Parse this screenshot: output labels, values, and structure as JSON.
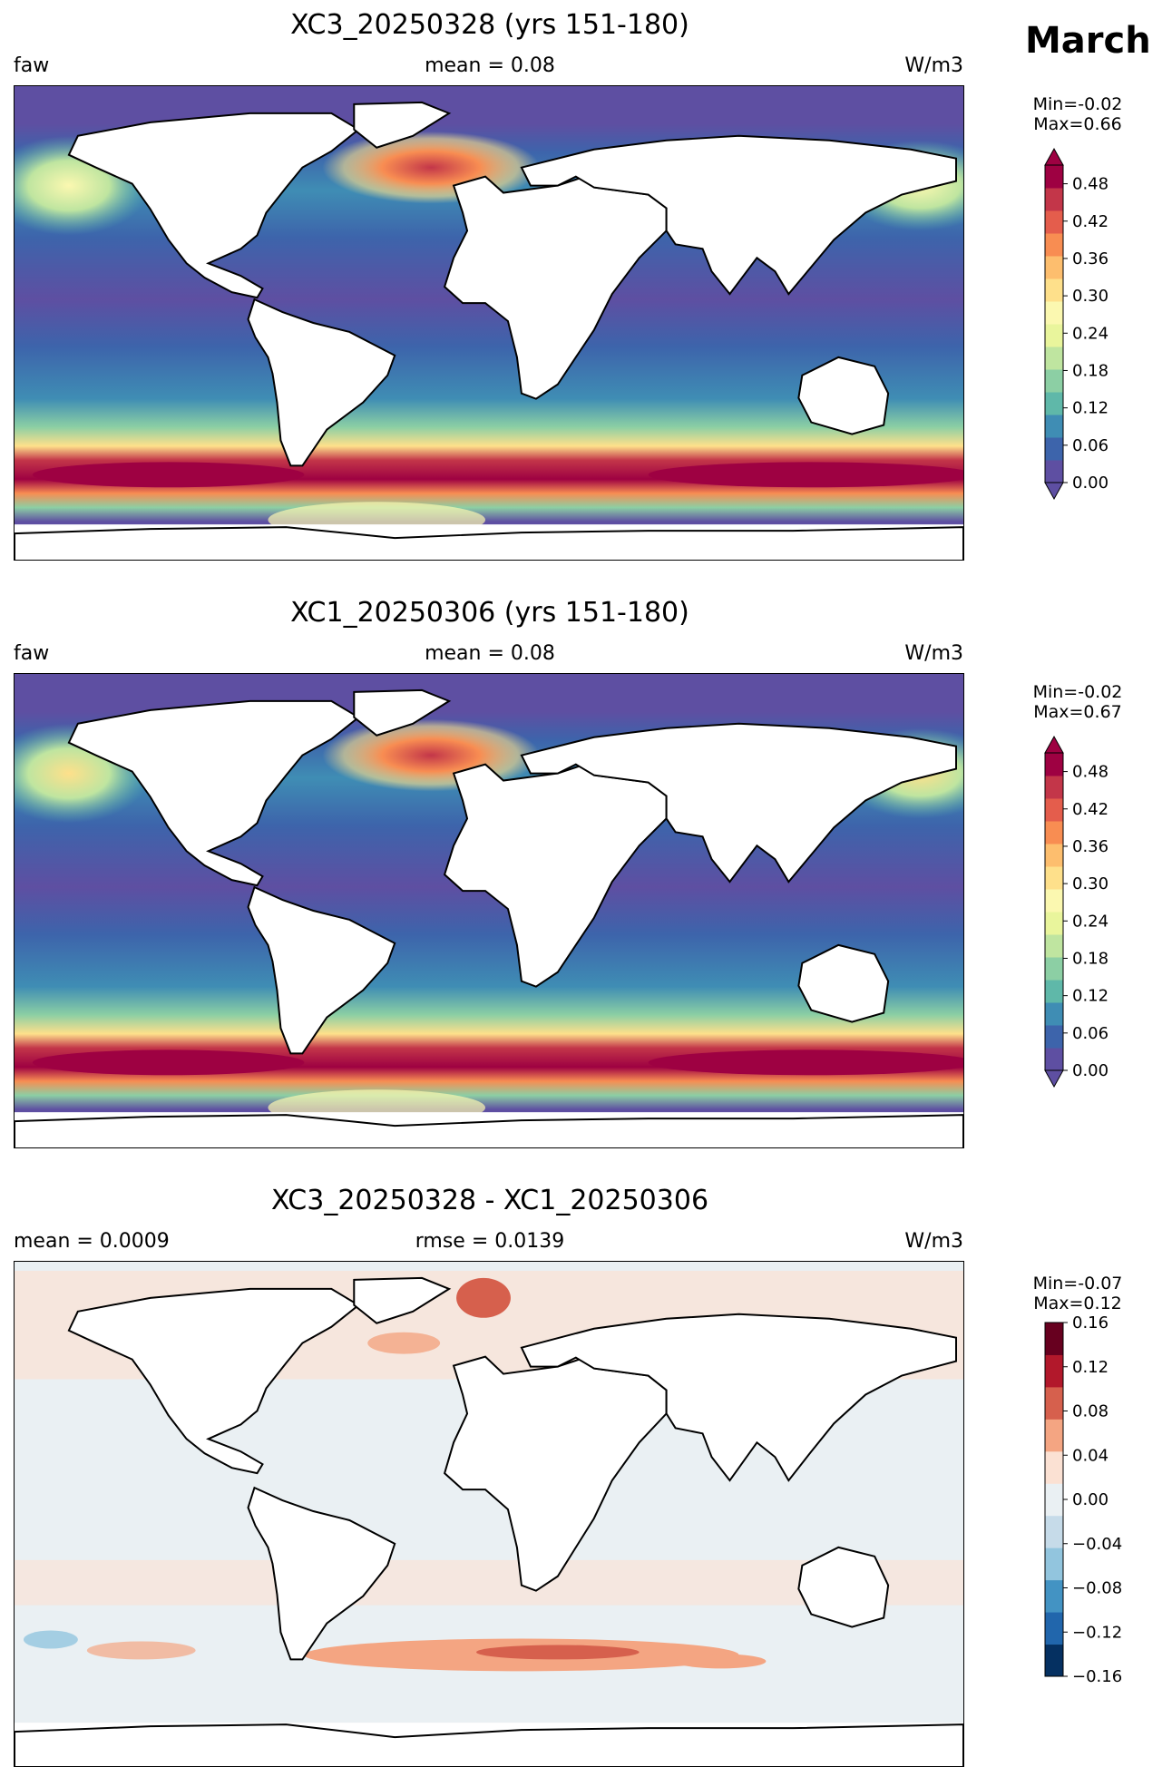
{
  "figure": {
    "month": "March"
  },
  "colors": {
    "ocean_low": "#5e4fa2",
    "land": "#ffffff",
    "coast": "#000000",
    "diff_neutral": "#eaf0f3",
    "spectral_scale": [
      "#5e4fa2",
      "#3d64ab",
      "#3f8db4",
      "#5fb8a9",
      "#8ccfa4",
      "#bfe5a0",
      "#e9f59c",
      "#fbf8b0",
      "#fee08b",
      "#fdbe6e",
      "#f88d52",
      "#e45d4c",
      "#c33649",
      "#9e0142"
    ],
    "rdbu_scale": [
      "#053061",
      "#2166ac",
      "#4393c3",
      "#92c5de",
      "#c6dbe9",
      "#eaf0f3",
      "#fbe1d3",
      "#f4a582",
      "#d6604d",
      "#b2182b",
      "#67001f"
    ]
  },
  "panels": [
    {
      "title": "XC3_20250328 (yrs 151-180)",
      "left_label": "faw",
      "center_label": "mean = 0.08",
      "right_label": "W/m3",
      "min_label": "Min=-0.02",
      "max_label": "Max=0.66"
    },
    {
      "title": "XC1_20250306 (yrs 151-180)",
      "left_label": "faw",
      "center_label": "mean = 0.08",
      "right_label": "W/m3",
      "min_label": "Min=-0.02",
      "max_label": "Max=0.67"
    },
    {
      "title": "XC3_20250328 - XC1_20250306",
      "left_label": "mean = 0.0009",
      "center_label": "rmse = 0.0139",
      "right_label": "W/m3",
      "min_label": "Min=-0.07",
      "max_label": "Max=0.12"
    }
  ],
  "chart_data": [
    {
      "type": "heatmap",
      "title": "XC3_20250328 (yrs 151-180)",
      "variable": "faw",
      "units": "W/m3",
      "mean": 0.08,
      "min": -0.02,
      "max": 0.66,
      "colormap": "Spectral_r",
      "colorbar_extend": "both",
      "colorbar_range": [
        0.0,
        0.51
      ],
      "colorbar_ticks": [
        "0.00",
        "0.06",
        "0.12",
        "0.18",
        "0.24",
        "0.30",
        "0.36",
        "0.42",
        "0.48"
      ]
    },
    {
      "type": "heatmap",
      "title": "XC1_20250306 (yrs 151-180)",
      "variable": "faw",
      "units": "W/m3",
      "mean": 0.08,
      "min": -0.02,
      "max": 0.67,
      "colormap": "Spectral_r",
      "colorbar_extend": "both",
      "colorbar_range": [
        0.0,
        0.51
      ],
      "colorbar_ticks": [
        "0.00",
        "0.06",
        "0.12",
        "0.18",
        "0.24",
        "0.30",
        "0.36",
        "0.42",
        "0.48"
      ]
    },
    {
      "type": "heatmap",
      "title": "XC3_20250328 - XC1_20250306",
      "units": "W/m3",
      "mean": 0.0009,
      "rmse": 0.0139,
      "min": -0.07,
      "max": 0.12,
      "colormap": "RdBu_r",
      "colorbar_extend": "neither",
      "colorbar_range": [
        -0.16,
        0.16
      ],
      "colorbar_ticks": [
        "0.16",
        "0.12",
        "0.08",
        "0.04",
        "0.00",
        "−0.04",
        "−0.08",
        "−0.12",
        "−0.16"
      ]
    }
  ]
}
